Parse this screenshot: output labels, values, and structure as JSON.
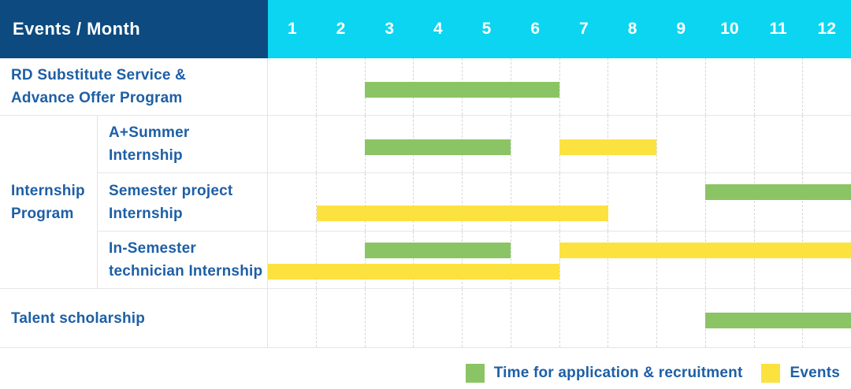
{
  "header": {
    "events_month_label": "Events / Month",
    "months": [
      "1",
      "2",
      "3",
      "4",
      "5",
      "6",
      "7",
      "8",
      "9",
      "10",
      "11",
      "12"
    ]
  },
  "colors": {
    "header_navy": "#0D4A80",
    "header_cyan": "#0BD5F0",
    "application_green": "#8BC464",
    "events_yellow": "#FCE23F",
    "label_blue": "#1D5FA6",
    "grid_solid": "#E6E6E6",
    "grid_dashed": "#D6D6D6"
  },
  "legend": {
    "items": [
      {
        "key": "application",
        "label": "Time for application & recruitment",
        "color": "#8BC464"
      },
      {
        "key": "events",
        "label": "Events",
        "color": "#FCE23F"
      }
    ]
  },
  "chart_data": {
    "type": "gantt",
    "x_axis": {
      "unit": "month",
      "ticks": [
        1,
        2,
        3,
        4,
        5,
        6,
        7,
        8,
        9,
        10,
        11,
        12
      ],
      "range": [
        1,
        12
      ]
    },
    "legend_position": "bottom-right",
    "series_names": {
      "application": "Time for application & recruitment",
      "events": "Events"
    },
    "group_label": "Internship Program",
    "group_label_lines": [
      "Internship",
      "Program"
    ],
    "rows": [
      {
        "group": "",
        "label": "RD Substitute Service & Advance Offer Program",
        "label_lines": [
          "RD Substitute Service &",
          "Advance Offer Program"
        ],
        "bars": [
          {
            "series": "application",
            "start_month": 3,
            "end_month": 6,
            "row_position": "middle"
          }
        ]
      },
      {
        "group": "Internship Program",
        "label": "A+Summer Internship",
        "label_lines": [
          "A+Summer",
          "Internship"
        ],
        "bars": [
          {
            "series": "application",
            "start_month": 3,
            "end_month": 5,
            "row_position": "middle"
          },
          {
            "series": "events",
            "start_month": 7,
            "end_month": 8,
            "row_position": "middle"
          }
        ]
      },
      {
        "group": "Internship Program",
        "label": "Semester project Internship",
        "label_lines": [
          "Semester project",
          "Internship"
        ],
        "bars": [
          {
            "series": "application",
            "start_month": 10,
            "end_month": 12,
            "row_position": "upper"
          },
          {
            "series": "events",
            "start_month": 2,
            "end_month": 7,
            "row_position": "lower"
          }
        ]
      },
      {
        "group": "Internship Program",
        "label": "In-Semester technician Internship",
        "label_lines": [
          "In-Semester",
          "technician Internship"
        ],
        "bars": [
          {
            "series": "application",
            "start_month": 3,
            "end_month": 5,
            "row_position": "upper"
          },
          {
            "series": "events",
            "start_month": 7,
            "end_month": 12,
            "row_position": "upper"
          },
          {
            "series": "events",
            "start_month": 1,
            "end_month": 6,
            "row_position": "lower"
          }
        ]
      },
      {
        "group": "",
        "label": "Talent scholarship",
        "label_lines": [
          "Talent scholarship"
        ],
        "bars": [
          {
            "series": "application",
            "start_month": 10,
            "end_month": 12,
            "row_position": "middle"
          }
        ]
      }
    ]
  }
}
